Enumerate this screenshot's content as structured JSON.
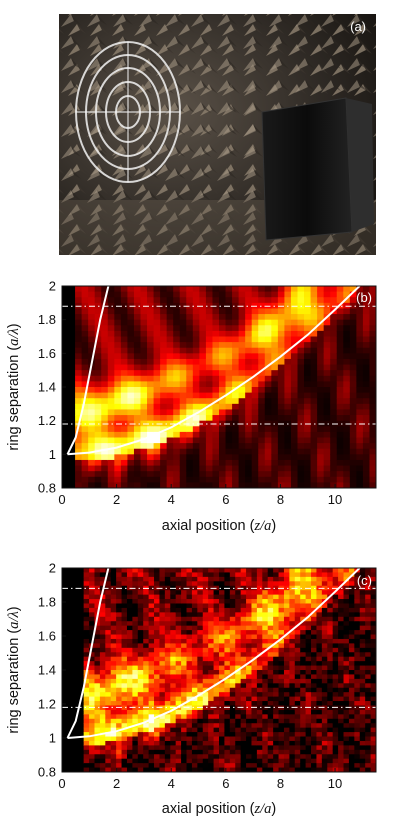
{
  "chart_data": [
    {
      "panel": "(a)",
      "type": "photo",
      "description_label": "(a)"
    },
    {
      "panel": "(b)",
      "type": "heatmap",
      "colormap": "hot",
      "xlabel": "axial position (z/a)",
      "ylabel": "ring separation (a/λ)",
      "xlim": [
        0,
        11.5
      ],
      "ylim": [
        0.8,
        2.0
      ],
      "xticks": [
        0,
        2,
        4,
        6,
        8,
        10
      ],
      "yticks": [
        0.8,
        1,
        1.2,
        1.4,
        1.6,
        1.8,
        2
      ],
      "dashed_reference_lines_y": [
        1.18,
        1.88
      ],
      "blank_region_x_max": 0.45,
      "curves": [
        {
          "x": [
            0.2,
            0.5,
            0.8,
            1.1,
            1.4,
            1.7
          ],
          "y": [
            1.0,
            1.1,
            1.3,
            1.55,
            1.8,
            2.0
          ]
        },
        {
          "x": [
            0.2,
            1.0,
            2.0,
            3.0,
            4.0,
            5.0,
            6.0,
            7.0,
            8.0,
            9.0,
            10.0,
            10.9
          ],
          "y": [
            1.0,
            1.01,
            1.04,
            1.09,
            1.16,
            1.25,
            1.35,
            1.46,
            1.58,
            1.71,
            1.86,
            2.0
          ]
        }
      ]
    },
    {
      "panel": "(c)",
      "type": "heatmap",
      "colormap": "hot",
      "xlabel": "axial position (z/a)",
      "ylabel": "ring separation (a/λ)",
      "xlim": [
        0,
        11.5
      ],
      "ylim": [
        0.8,
        2.0
      ],
      "xticks": [
        0,
        2,
        4,
        6,
        8,
        10
      ],
      "yticks": [
        0.8,
        1,
        1.2,
        1.4,
        1.6,
        1.8,
        2
      ],
      "dashed_reference_lines_y": [
        1.18,
        1.88
      ],
      "blank_region_x_max": 0.8,
      "curves": [
        {
          "x": [
            0.2,
            0.5,
            0.8,
            1.1,
            1.4,
            1.7
          ],
          "y": [
            1.0,
            1.1,
            1.3,
            1.55,
            1.8,
            2.0
          ]
        },
        {
          "x": [
            0.2,
            1.0,
            2.0,
            3.0,
            4.0,
            5.0,
            6.0,
            7.0,
            8.0,
            9.0,
            10.0,
            10.9
          ],
          "y": [
            1.0,
            1.01,
            1.04,
            1.09,
            1.16,
            1.25,
            1.35,
            1.46,
            1.58,
            1.71,
            1.86,
            2.0
          ]
        }
      ]
    }
  ],
  "labels": {
    "panel_a": "(a)",
    "panel_b": "(b)",
    "panel_c": "(c)",
    "xlabel_prefix": "axial position (",
    "xlabel_var": "z/a",
    "xlabel_suffix": ")",
    "ylabel_prefix": "ring separation (",
    "ylabel_var": "a/λ",
    "ylabel_suffix": ")"
  }
}
